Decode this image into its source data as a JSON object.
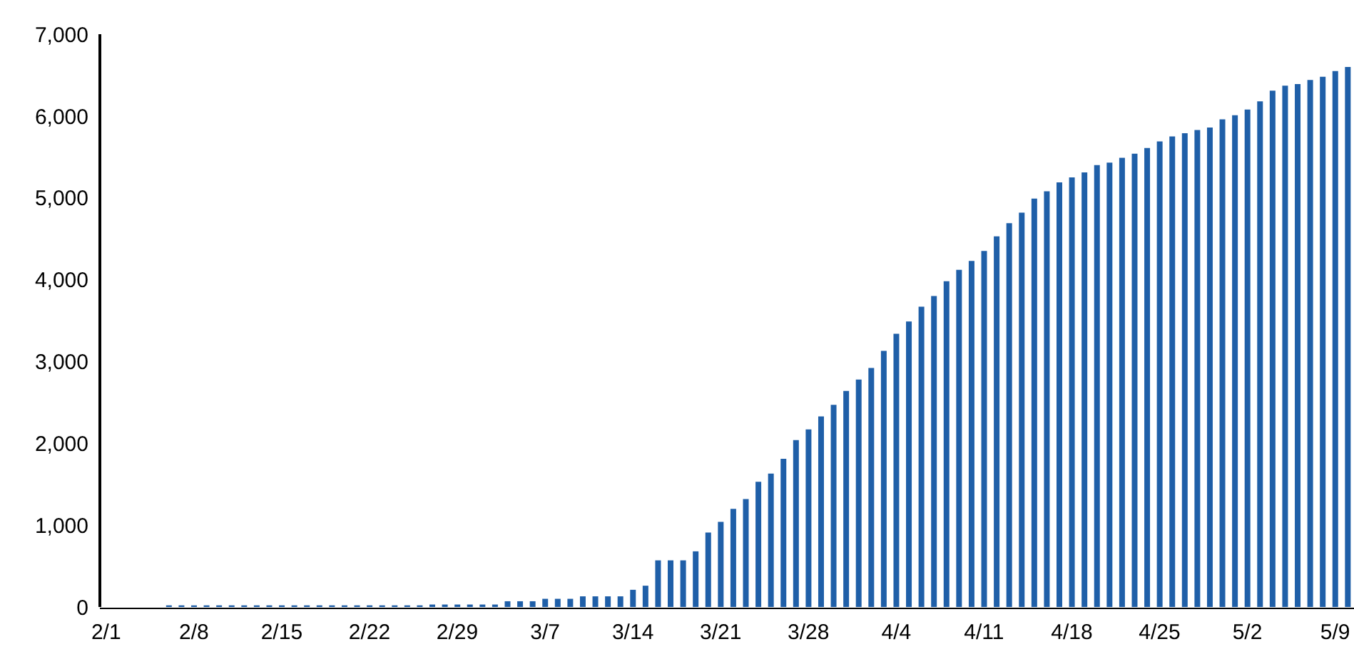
{
  "chart_data": {
    "type": "bar",
    "categories": [
      "2/1",
      null,
      null,
      null,
      null,
      null,
      null,
      "2/8",
      null,
      null,
      null,
      null,
      null,
      null,
      "2/15",
      null,
      null,
      null,
      null,
      null,
      null,
      "2/22",
      null,
      null,
      null,
      null,
      null,
      null,
      "2/29",
      null,
      null,
      null,
      null,
      null,
      null,
      "3/7",
      null,
      null,
      null,
      null,
      null,
      null,
      "3/14",
      null,
      null,
      null,
      null,
      null,
      null,
      "3/21",
      null,
      null,
      null,
      null,
      null,
      null,
      "3/28",
      null,
      null,
      null,
      null,
      null,
      null,
      "4/4",
      null,
      null,
      null,
      null,
      null,
      null,
      "4/11",
      null,
      null,
      null,
      null,
      null,
      null,
      "4/18",
      null,
      null,
      null,
      null,
      null,
      null,
      "4/25",
      null,
      null,
      null,
      null,
      null,
      null,
      "5/2",
      null,
      null,
      null,
      null,
      null,
      null,
      "5/9",
      null
    ],
    "values": [
      0,
      0,
      0,
      0,
      0,
      20,
      20,
      20,
      20,
      20,
      20,
      20,
      20,
      20,
      20,
      20,
      20,
      20,
      20,
      20,
      20,
      20,
      20,
      20,
      20,
      20,
      30,
      30,
      30,
      30,
      30,
      30,
      70,
      70,
      70,
      100,
      100,
      100,
      130,
      130,
      130,
      130,
      210,
      260,
      570,
      570,
      570,
      680,
      910,
      1040,
      1200,
      1320,
      1530,
      1630,
      1810,
      2040,
      2170,
      2330,
      2470,
      2640,
      2780,
      2920,
      3130,
      3340,
      3490,
      3670,
      3800,
      3980,
      4120,
      4230,
      4350,
      4530,
      4690,
      4820,
      4990,
      5080,
      5190,
      5250,
      5310,
      5400,
      5430,
      5490,
      5540,
      5610,
      5690,
      5750,
      5790,
      5830,
      5860,
      5960,
      6010,
      6080,
      6180,
      6310,
      6370,
      6390,
      6440,
      6480,
      6550,
      6600
    ],
    "color": "#1f5fa8",
    "ylim": [
      0,
      7000
    ],
    "yticks": [
      {
        "value": 0,
        "label": "0"
      },
      {
        "value": 1000,
        "label": "1,000"
      },
      {
        "value": 2000,
        "label": "2,000"
      },
      {
        "value": 3000,
        "label": "3,000"
      },
      {
        "value": 4000,
        "label": "4,000"
      },
      {
        "value": 5000,
        "label": "5,000"
      },
      {
        "value": 6000,
        "label": "6,000"
      },
      {
        "value": 7000,
        "label": "7,000"
      }
    ],
    "grid": false
  }
}
